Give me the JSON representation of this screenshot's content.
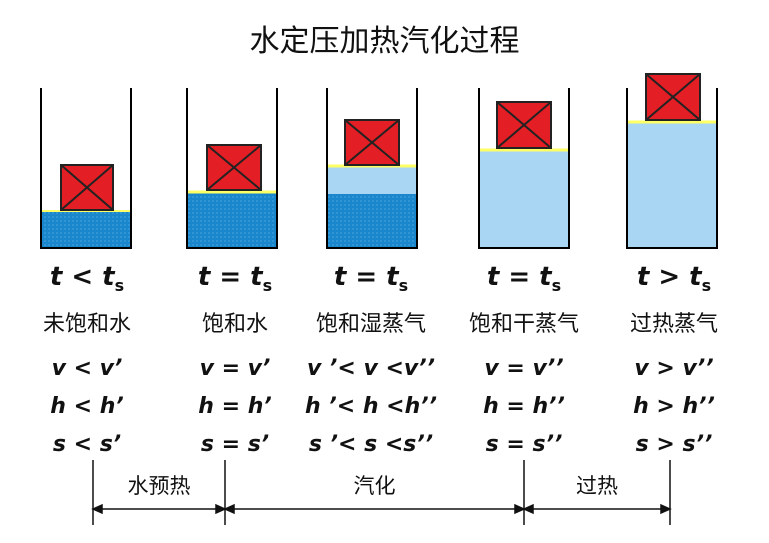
{
  "title": "水定压加热汽化过程",
  "colors": {
    "water_deep": "#1a86cc",
    "water_light": "#a9d6f2",
    "surface": "#ffff66",
    "weight": "#e31e24",
    "wall": "#000000"
  },
  "stages": [
    {
      "temp": "t < t",
      "temp_sub": "s",
      "state": "未饱和水",
      "v": "v < v’",
      "h": "h < h’",
      "s": "s < s’",
      "icon": "piston-weight-icon"
    },
    {
      "temp": "t = t",
      "temp_sub": "s",
      "state": "饱和水",
      "v": "v = v’",
      "h": "h = h’",
      "s": "s = s’",
      "icon": "piston-weight-icon"
    },
    {
      "temp": "t = t",
      "temp_sub": "s",
      "state": "饱和湿蒸气",
      "v": "v ’< v <v’’",
      "h": "h ’< h <h’’",
      "s": "s ’< s <s’’",
      "icon": "piston-weight-icon"
    },
    {
      "temp": "t = t",
      "temp_sub": "s",
      "state": "饱和干蒸气",
      "v": "v = v’’",
      "h": "h = h’’",
      "s": "s = s’’",
      "icon": "piston-weight-icon"
    },
    {
      "temp": "t > t",
      "temp_sub": "s",
      "state": "过热蒸气",
      "v": "v > v’’",
      "h": "h > h’’",
      "s": "s > s’’",
      "icon": "piston-weight-icon"
    }
  ],
  "segments": {
    "preheat": "水预热",
    "vaporize": "汽化",
    "superheat": "过热"
  }
}
